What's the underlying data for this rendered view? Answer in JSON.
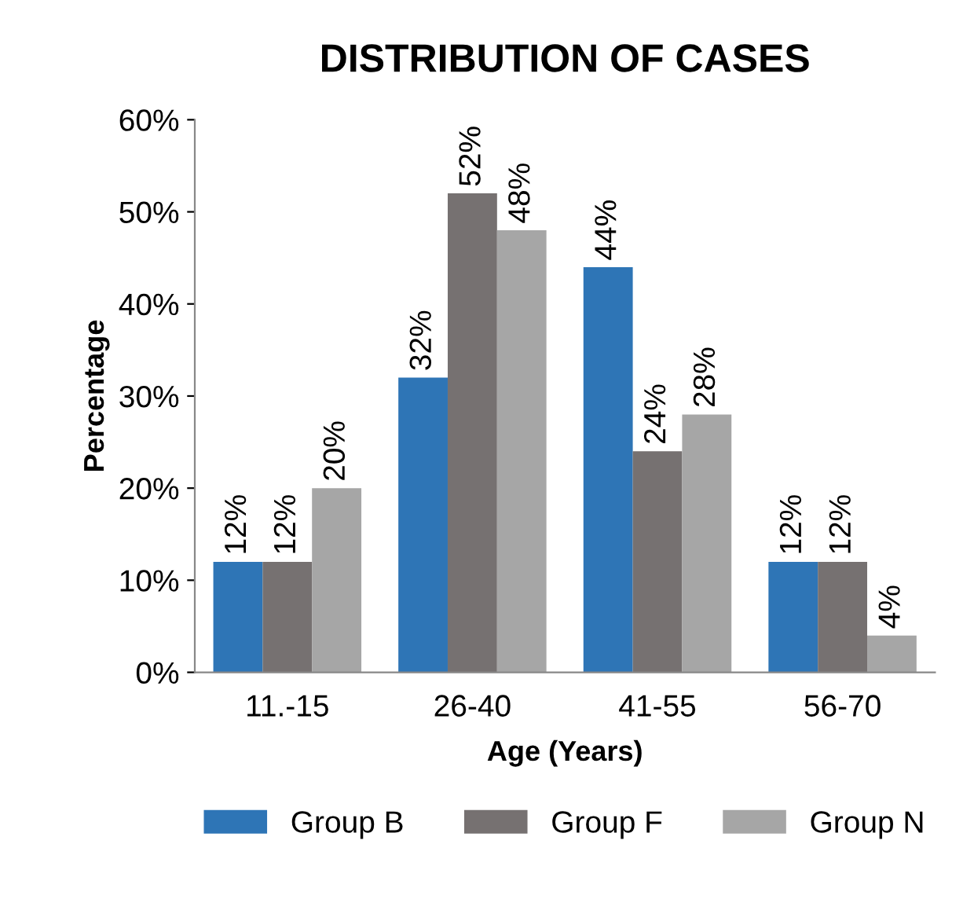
{
  "chart_data": {
    "type": "bar",
    "title": "DISTRIBUTION OF CASES",
    "xlabel": "Age (Years)",
    "ylabel": "Percentage",
    "categories": [
      "11.-15",
      "26-40",
      "41-55",
      "56-70"
    ],
    "series": [
      {
        "name": "Group B",
        "color": "#2e75b6",
        "values": [
          12,
          32,
          44,
          12
        ],
        "value_labels": [
          "12%",
          "32%",
          "44%",
          "12%"
        ]
      },
      {
        "name": "Group F",
        "color": "#767171",
        "values": [
          12,
          52,
          24,
          12
        ],
        "value_labels": [
          "12%",
          "52%",
          "24%",
          "12%"
        ]
      },
      {
        "name": "Group N",
        "color": "#a6a6a6",
        "values": [
          20,
          48,
          28,
          4
        ],
        "value_labels": [
          "20%",
          "48%",
          "28%",
          "4%"
        ]
      }
    ],
    "ylim": [
      0,
      60
    ],
    "yticks": [
      {
        "value": 0,
        "label": "0%"
      },
      {
        "value": 10,
        "label": "10%"
      },
      {
        "value": 20,
        "label": "20%"
      },
      {
        "value": 30,
        "label": "30%"
      },
      {
        "value": 40,
        "label": "40%"
      },
      {
        "value": 50,
        "label": "50%"
      },
      {
        "value": 60,
        "label": "60%"
      }
    ],
    "grid": false,
    "legend": "bottom"
  }
}
